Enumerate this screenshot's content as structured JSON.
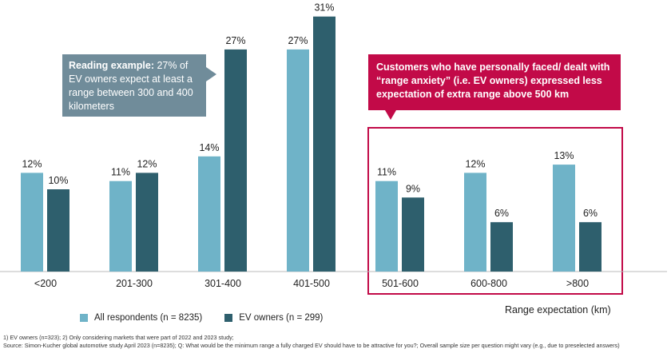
{
  "chart_data": {
    "type": "bar",
    "categories": [
      "<200",
      "201-300",
      "301-400",
      "401-500",
      "501-600",
      "600-800",
      ">800"
    ],
    "series": [
      {
        "name": "All respondents (n = 8235)",
        "values": [
          12,
          11,
          14,
          27,
          11,
          12,
          13
        ],
        "labels": [
          "12%",
          "11%",
          "14%",
          "27%",
          "11%",
          "12%",
          "13%"
        ],
        "color": "#6fb3c8"
      },
      {
        "name": "EV owners (n = 299)",
        "values": [
          10,
          12,
          27,
          31,
          9,
          6,
          6
        ],
        "labels": [
          "10%",
          "12%",
          "27%",
          "31%",
          "9%",
          "6%",
          "6%"
        ],
        "color": "#2e5f6d"
      }
    ],
    "xlabel": "Range expectation (km)",
    "ylabel": "",
    "ylim": [
      0,
      32
    ],
    "grid": false,
    "legend_position": "bottom-left",
    "highlight": {
      "categories": [
        "501-600",
        "600-800",
        ">800"
      ],
      "color": "#c20a48"
    }
  },
  "callouts": {
    "reading_bold": "Reading example:",
    "reading_text": " 27% of EV owners expect at least a range between 300 and 400 kilometers",
    "range_anxiety": "Customers who have personally faced/ dealt with “range anxiety” (i.e. EV owners) expressed less expectation of extra range above 500 km"
  },
  "footnotes": {
    "line1": "1) EV owners (n=323); 2) Only considering markets that were part of 2022 and 2023 study;",
    "line2": "Source: Simon-Kucher global automotive study April 2023 (n=8235); Q: What would be the minimum range a fully charged EV should have to be attractive for you?; Overall sample size per question might vary (e.g., due to preselected answers)"
  }
}
